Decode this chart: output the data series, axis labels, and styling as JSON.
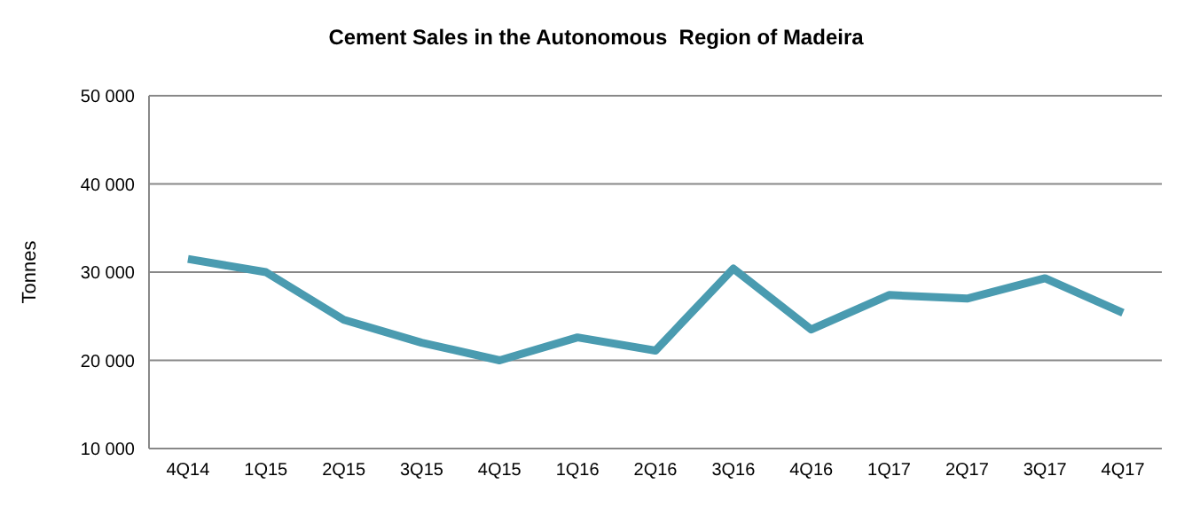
{
  "chart_data": {
    "type": "line",
    "title": "Cement Sales in the Autonomous  Region of Madeira",
    "ylabel": "Tonnes",
    "categories": [
      "4Q14",
      "1Q15",
      "2Q15",
      "3Q15",
      "4Q15",
      "1Q16",
      "2Q16",
      "3Q16",
      "4Q16",
      "1Q17",
      "2Q17",
      "3Q17",
      "4Q17"
    ],
    "series": [
      {
        "color": "#4a9bb0",
        "values": [
          31500,
          30000,
          24600,
          22000,
          20000,
          22600,
          21100,
          30400,
          23500,
          27400,
          27000,
          29300,
          25400
        ]
      }
    ],
    "ylim": [
      10000,
      50000
    ],
    "yticks": [
      {
        "value": 10000,
        "label": "10 000"
      },
      {
        "value": 20000,
        "label": "20 000"
      },
      {
        "value": 30000,
        "label": "30 000"
      },
      {
        "value": 40000,
        "label": "40 000"
      },
      {
        "value": 50000,
        "label": "50 000"
      }
    ],
    "grid": "y",
    "legend": false,
    "marker": "none",
    "line_style": "solid"
  }
}
